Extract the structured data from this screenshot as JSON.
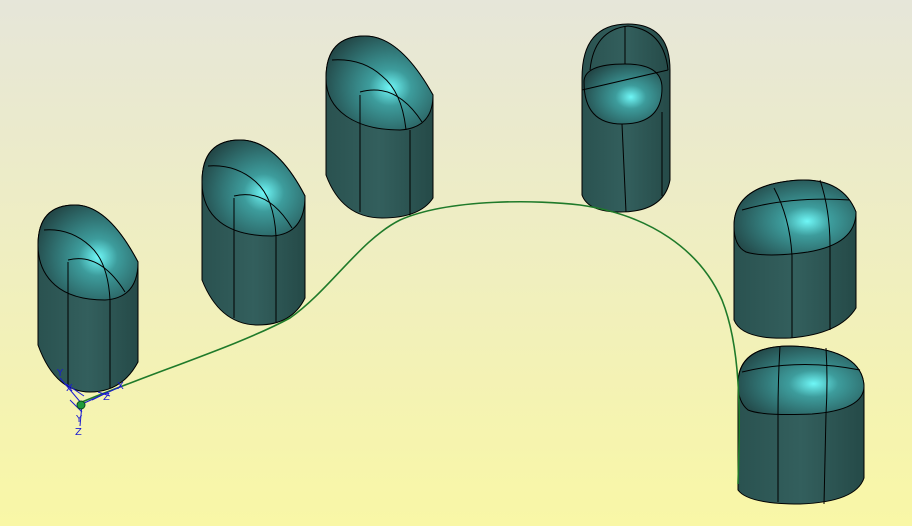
{
  "scene": {
    "background": {
      "top": "#e6e6d9",
      "bottom": "#f9f7a6"
    },
    "solid": {
      "color": "#2e5c5a",
      "highlight": "#5ef2f2",
      "edge": "#000000"
    },
    "path_curve": {
      "color": "#1f7a2a"
    },
    "triad": {
      "color": "#1a1ad0",
      "origin_color": "#1f9a3a",
      "labels": {
        "x": "X",
        "y": "Y",
        "z": "Z"
      }
    },
    "capsule_count": 6
  }
}
